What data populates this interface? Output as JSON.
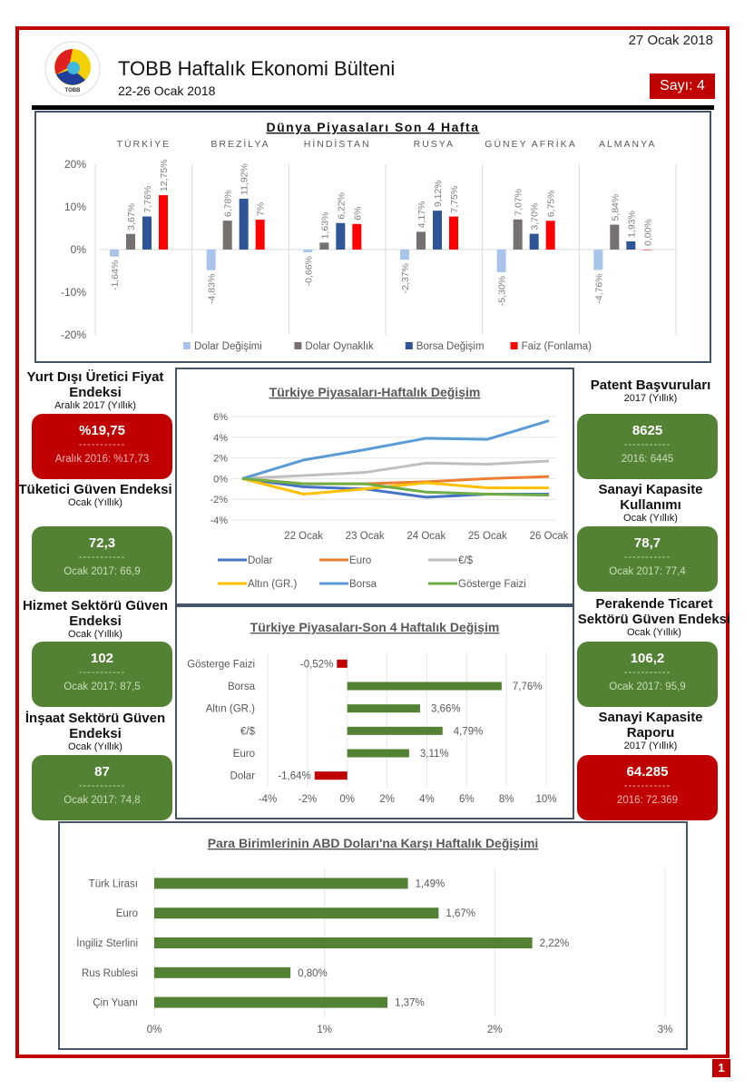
{
  "header": {
    "date": "27 Ocak 2018",
    "title": "TOBB Haftalık Ekonomi Bülteni",
    "period": "22-26 Ocak 2018",
    "issue": "Sayı: 4",
    "logo_text": "TOBB"
  },
  "page_number": "1",
  "colors": {
    "frame_red": "#c00000",
    "kpi_green": "#548235",
    "kpi_red": "#c00000"
  },
  "kpis_left": [
    {
      "title": "Yurt Dışı Üretici Fiyat Endeksi",
      "subtitle": "Aralık 2017 (Yıllık)",
      "value": "%19,75",
      "dash": "-----------",
      "previous": "Aralık 2016: %17,73",
      "status": "red"
    },
    {
      "title": "Tüketici Güven Endeksi",
      "subtitle": "Ocak (Yıllık)",
      "value": "72,3",
      "dash": "-----------",
      "previous": "Ocak 2017: 66,9",
      "status": "green"
    },
    {
      "title": "Hizmet Sektörü Güven Endeksi",
      "subtitle": "Ocak (Yıllık)",
      "value": "102",
      "dash": "-----------",
      "previous": "Ocak 2017: 87,5",
      "status": "green"
    },
    {
      "title": "İnşaat Sektörü Güven Endeksi",
      "subtitle": "Ocak (Yıllık)",
      "value": "87",
      "dash": "-----------",
      "previous": "Ocak 2017: 74,8",
      "status": "green"
    }
  ],
  "kpis_right": [
    {
      "title": "Patent Başvuruları",
      "subtitle": "2017 (Yıllık)",
      "value": "8625",
      "dash": "-----------",
      "previous": "2016: 6445",
      "status": "green"
    },
    {
      "title": "Sanayi Kapasite Kullanımı",
      "subtitle": "Ocak (Yıllık)",
      "value": "78,7",
      "dash": "-----------",
      "previous": "Ocak 2017: 77,4",
      "status": "green"
    },
    {
      "title": "Perakende Ticaret Sektörü Güven Endeksi",
      "subtitle": "Ocak (Yıllık)",
      "value": "106,2",
      "dash": "-----------",
      "previous": "Ocak 2017: 95,9",
      "status": "green"
    },
    {
      "title": "Sanayi Kapasite Raporu",
      "subtitle": "2017 (Yıllık)",
      "value": "64.285",
      "dash": "-----------",
      "previous": "2016: 72.369",
      "status": "red"
    }
  ],
  "chart_data": [
    {
      "id": "world",
      "type": "bar",
      "title": "Dünya Piyasaları Son 4 Hafta",
      "categories": [
        "TÜRKİYE",
        "BREZİLYA",
        "HİNDİSTAN",
        "RUSYA",
        "GÜNEY AFRİKA",
        "ALMANYA"
      ],
      "series": [
        {
          "name": "Dolar Değişimi",
          "color": "#a9c4eb",
          "values": [
            -1.64,
            -4.83,
            -0.66,
            -2.37,
            -5.3,
            -4.76
          ],
          "labels": [
            "-1,64%",
            "-4,83%",
            "-0,66%",
            "-2,37%",
            "-5,30%",
            "-4,76%"
          ]
        },
        {
          "name": "Dolar Oynaklık",
          "color": "#767171",
          "values": [
            3.67,
            6.78,
            1.63,
            4.17,
            7.07,
            5.84
          ],
          "labels": [
            "3,67%",
            "6,78%",
            "1,63%",
            "4,17%",
            "7,07%",
            "5,84%"
          ]
        },
        {
          "name": "Borsa Değişim",
          "color": "#2f5597",
          "values": [
            7.76,
            11.92,
            6.22,
            9.12,
            3.7,
            1.93
          ],
          "labels": [
            "7,76%",
            "11,92%",
            "6,22%",
            "9,12%",
            "3,70%",
            "1,93%"
          ]
        },
        {
          "name": "Faiz (Fonlama)",
          "color": "#ff0000",
          "values": [
            12.75,
            7,
            6,
            7.75,
            6.75,
            0
          ],
          "labels": [
            "12,75%",
            "7%",
            "6%",
            "7,75%",
            "6,75%",
            "0,00%"
          ]
        }
      ],
      "yticks": [
        "20%",
        "10%",
        "0%",
        "-10%",
        "-20%"
      ],
      "ylim": [
        -20,
        20
      ],
      "legend": "bottom"
    },
    {
      "id": "weekly",
      "type": "line",
      "title": "Türkiye Piyasaları-Haftalık Değişim",
      "x": [
        "",
        "22 Ocak",
        "23 Ocak",
        "24 Ocak",
        "25 Ocak",
        "26 Ocak"
      ],
      "series": [
        {
          "name": "Dolar",
          "color": "#4472c4",
          "values": [
            0,
            -0.8,
            -1.0,
            -1.8,
            -1.5,
            -1.5
          ]
        },
        {
          "name": "Euro",
          "color": "#ed7d31",
          "values": [
            0,
            -0.5,
            -0.5,
            -0.3,
            0.0,
            0.2
          ]
        },
        {
          "name": "€/$",
          "color": "#bfbfbf",
          "values": [
            0,
            0.3,
            0.6,
            1.5,
            1.4,
            1.7
          ]
        },
        {
          "name": "Altın (GR.)",
          "color": "#ffc000",
          "values": [
            0,
            -1.5,
            -1.0,
            -0.4,
            -0.9,
            -0.9
          ]
        },
        {
          "name": "Borsa",
          "color": "#5b9bd5",
          "values": [
            0,
            1.8,
            2.8,
            3.9,
            3.8,
            5.6
          ]
        },
        {
          "name": "Gösterge Faizi",
          "color": "#70ad47",
          "values": [
            0,
            -0.5,
            -0.5,
            -1.3,
            -1.5,
            -1.6
          ]
        }
      ],
      "yticks": [
        "6%",
        "4%",
        "2%",
        "0%",
        "-2%",
        "-4%"
      ],
      "ylim": [
        -4,
        6
      ],
      "grid": true,
      "legend": "bottom"
    },
    {
      "id": "four_week",
      "type": "bar",
      "orientation": "horizontal",
      "title": "Türkiye Piyasaları-Son 4 Haftalık Değişim",
      "categories": [
        "Gösterge Faizi",
        "Borsa",
        "Altın (GR.)",
        "€/$",
        "Euro",
        "Dolar"
      ],
      "values": [
        -0.52,
        7.76,
        3.66,
        4.79,
        3.11,
        -1.64
      ],
      "labels": [
        "-0,52%",
        "7,76%",
        "3,66%",
        "4,79%",
        "3,11%",
        "-1,64%"
      ],
      "positive_color": "#548235",
      "negative_color": "#c00000",
      "xticks": [
        "-4%",
        "-2%",
        "0%",
        "2%",
        "4%",
        "6%",
        "8%",
        "10%"
      ],
      "xlim": [
        -4,
        10
      ],
      "grid": true
    },
    {
      "id": "currencies",
      "type": "bar",
      "orientation": "horizontal",
      "title": "Para Birimlerinin ABD Doları'na Karşı Haftalık Değişimi",
      "categories": [
        "Türk Lirası",
        "Euro",
        "İngiliz Sterlini",
        "Rus Rublesi",
        "Çin Yuanı"
      ],
      "values": [
        1.49,
        1.67,
        2.22,
        0.8,
        1.37
      ],
      "labels": [
        "1,49%",
        "1,67%",
        "2,22%",
        "0,80%",
        "1,37%"
      ],
      "color": "#548235",
      "xticks": [
        "0%",
        "1%",
        "2%",
        "3%"
      ],
      "xlim": [
        0,
        3
      ],
      "grid": true
    }
  ]
}
